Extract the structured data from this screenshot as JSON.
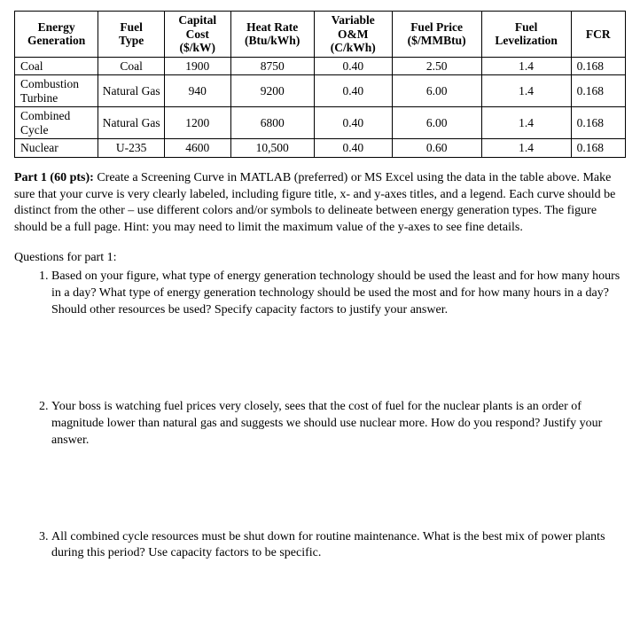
{
  "table": {
    "headers": [
      "Energy Generation",
      "Fuel Type",
      "Capital Cost ($/kW)",
      "Heat Rate (Btu/kWh)",
      "Variable O&M (C/kWh)",
      "Fuel Price ($/MMBtu)",
      "Fuel Levelization",
      "FCR"
    ],
    "header_lines": [
      [
        "Energy",
        "Generation"
      ],
      [
        "Fuel",
        "Type"
      ],
      [
        "Capital",
        "Cost",
        "($/kW)"
      ],
      [
        "Heat Rate",
        "(Btu/kWh)"
      ],
      [
        "Variable",
        "O&M",
        "(C/kWh)"
      ],
      [
        "Fuel Price",
        "($/MMBtu)"
      ],
      [
        "Fuel",
        "Levelization"
      ],
      [
        "FCR"
      ]
    ],
    "col_widths_pct": [
      13,
      10,
      10,
      13,
      12,
      14,
      14,
      8
    ],
    "rows": [
      {
        "energy": "Coal",
        "fuel": "Coal",
        "capital": "1900",
        "heat": "8750",
        "om": "0.40",
        "price": "2.50",
        "level": "1.4",
        "fcr": "0.168"
      },
      {
        "energy": "Combustion Turbine",
        "fuel": "Natural Gas",
        "capital": "940",
        "heat": "9200",
        "om": "0.40",
        "price": "6.00",
        "level": "1.4",
        "fcr": "0.168"
      },
      {
        "energy": "Combined Cycle",
        "fuel": "Natural Gas",
        "capital": "1200",
        "heat": "6800",
        "om": "0.40",
        "price": "6.00",
        "level": "1.4",
        "fcr": "0.168"
      },
      {
        "energy": "Nuclear",
        "fuel": "U-235",
        "capital": "4600",
        "heat": "10,500",
        "om": "0.40",
        "price": "0.60",
        "level": "1.4",
        "fcr": "0.168"
      }
    ]
  },
  "part1": {
    "label": "Part 1 (60 pts):",
    "text": "Create a Screening Curve in MATLAB (preferred) or MS Excel using the data in the table above. Make sure that your curve is very clearly labeled, including figure title, x- and y-axes titles, and a legend. Each curve should be distinct from the other – use different colors and/or symbols to delineate between energy generation types. The figure should be a full page. Hint: you may need to limit the maximum value of the y-axes to see fine details."
  },
  "questions_heading": "Questions for part 1:",
  "questions": [
    "Based on your figure, what type of energy generation technology should be used the least and for how many hours in a day? What type of energy generation technology should be used the most and for how many hours in a day? Should other resources be used? Specify capacity factors to justify your answer.",
    "Your boss is watching fuel prices very closely, sees that the cost of fuel for the nuclear plants is an order of magnitude lower than natural gas and suggests we should use nuclear more. How do you respond? Justify your answer.",
    "All combined cycle resources must be shut down for routine maintenance. What is the best mix of power plants during this period? Use capacity factors to be specific."
  ]
}
